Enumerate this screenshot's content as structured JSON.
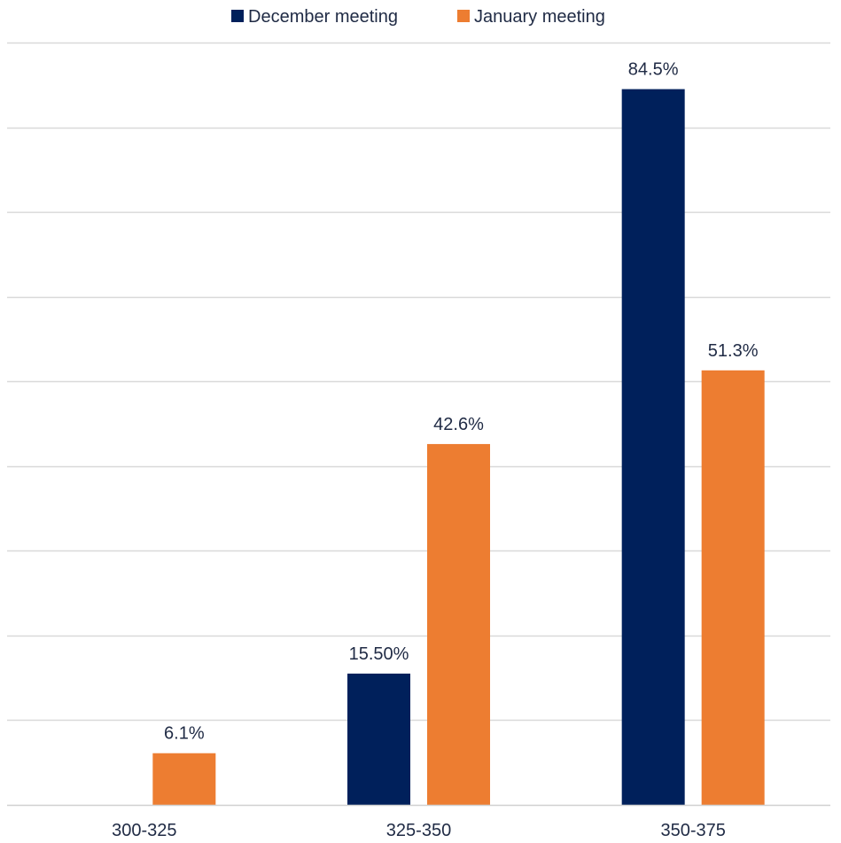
{
  "chart_data": {
    "type": "bar",
    "categories": [
      "300-325",
      "325-350",
      "350-375"
    ],
    "series": [
      {
        "name": "December meeting",
        "color": "#00205b",
        "values": [
          null,
          15.5,
          84.5
        ],
        "labels": [
          "",
          "15.50%",
          "84.5%"
        ]
      },
      {
        "name": "January meeting",
        "color": "#ed7d31",
        "values": [
          6.1,
          42.6,
          51.3
        ],
        "labels": [
          "6.1%",
          "42.6%",
          "51.3%"
        ]
      }
    ],
    "ylim": [
      0,
      90
    ],
    "grid": true,
    "legend": "top-center",
    "title": "",
    "xlabel": "",
    "ylabel": ""
  }
}
